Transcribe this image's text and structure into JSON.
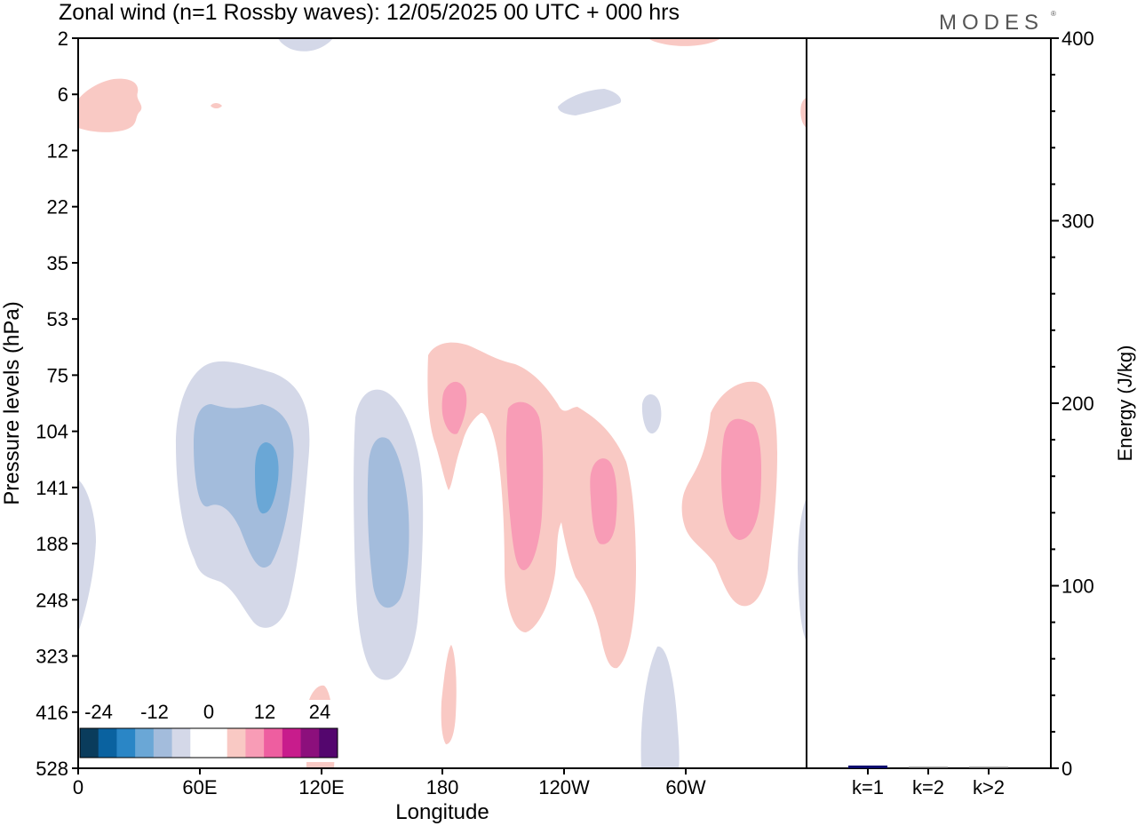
{
  "chart_data": [
    {
      "type": "heatmap",
      "title": "Zonal wind (n=1 Rossby waves):  12/05/2025  00 UTC  + 000 hrs",
      "brand": "MODES",
      "xlabel": "Longitude",
      "ylabel": "Pressure levels (hPa)",
      "x_ticks": [
        "0",
        "60E",
        "120E",
        "180",
        "120W",
        "60W"
      ],
      "y_ticks": [
        "2",
        "6",
        "12",
        "22",
        "35",
        "53",
        "75",
        "104",
        "141",
        "188",
        "248",
        "323",
        "416",
        "528"
      ],
      "colorbar": {
        "labels": [
          "-24",
          "-12",
          "0",
          "12",
          "24"
        ],
        "colors": [
          "#0a3c5c",
          "#0a62a0",
          "#2a86c6",
          "#6aa7d6",
          "#a3bcdc",
          "#d4d8e8",
          "#ffffff",
          "#ffffff",
          "#f9c9c4",
          "#f89cb6",
          "#ee5ea0",
          "#c81c8c",
          "#8c0f7c",
          "#54066e"
        ]
      },
      "contours": [
        {
          "name": "pos-strat-west",
          "level": "weak-pos",
          "color": "#f9c9c4"
        },
        {
          "name": "pos-strat-small",
          "level": "weak-pos",
          "color": "#f9c9c4"
        },
        {
          "name": "pos-top-center",
          "level": "weak-pos",
          "color": "#f9c9c4"
        },
        {
          "name": "pos-top-east",
          "level": "weak-pos",
          "color": "#f9c9c4"
        },
        {
          "name": "neg-top",
          "level": "weak-neg",
          "color": "#d4d8e8"
        },
        {
          "name": "neg-strat-east",
          "level": "weak-neg",
          "color": "#d4d8e8"
        },
        {
          "name": "neg-west-edge",
          "level": "weak-neg",
          "color": "#d4d8e8"
        },
        {
          "name": "neg-70e-outer",
          "level": "weak-neg",
          "color": "#d4d8e8"
        },
        {
          "name": "neg-70e-mid",
          "level": "mid-neg",
          "color": "#a3bcdc"
        },
        {
          "name": "neg-70e-core",
          "level": "strong-neg",
          "color": "#6aa7d6"
        },
        {
          "name": "neg-145e-outer",
          "level": "weak-neg",
          "color": "#d4d8e8"
        },
        {
          "name": "neg-145e-mid",
          "level": "mid-neg",
          "color": "#a3bcdc"
        },
        {
          "name": "pos-180-outer",
          "level": "weak-pos",
          "color": "#f9c9c4"
        },
        {
          "name": "pos-180-core",
          "level": "mid-pos",
          "color": "#f89cb6"
        },
        {
          "name": "pos-150w-core",
          "level": "mid-pos",
          "color": "#f89cb6"
        },
        {
          "name": "pos-110w-core",
          "level": "mid-pos",
          "color": "#f89cb6"
        },
        {
          "name": "neg-70w-small",
          "level": "weak-neg",
          "color": "#d4d8e8"
        },
        {
          "name": "pos-30w-outer",
          "level": "weak-pos",
          "color": "#f9c9c4"
        },
        {
          "name": "pos-30w-core",
          "level": "mid-pos",
          "color": "#f89cb6"
        },
        {
          "name": "neg-east-edge",
          "level": "weak-neg",
          "color": "#d4d8e8"
        },
        {
          "name": "pos-east-edge",
          "level": "weak-pos",
          "color": "#f9c9c4"
        },
        {
          "name": "neg-70w-low",
          "level": "weak-neg",
          "color": "#d4d8e8"
        },
        {
          "name": "pos-180-low",
          "level": "weak-pos",
          "color": "#f9c9c4"
        },
        {
          "name": "pos-120e-low",
          "level": "weak-pos",
          "color": "#f9c9c4"
        }
      ]
    },
    {
      "type": "bar",
      "ylabel": "Energy (J/kg)",
      "ylim": [
        0,
        400
      ],
      "y_ticks": [
        0,
        100,
        200,
        300,
        400
      ],
      "categories": [
        "k=1",
        "k=2",
        "k>2"
      ],
      "values": [
        1.5,
        0.3,
        0.3
      ],
      "colors": [
        "#0a0a6e",
        "#555555",
        "#555555"
      ]
    }
  ]
}
